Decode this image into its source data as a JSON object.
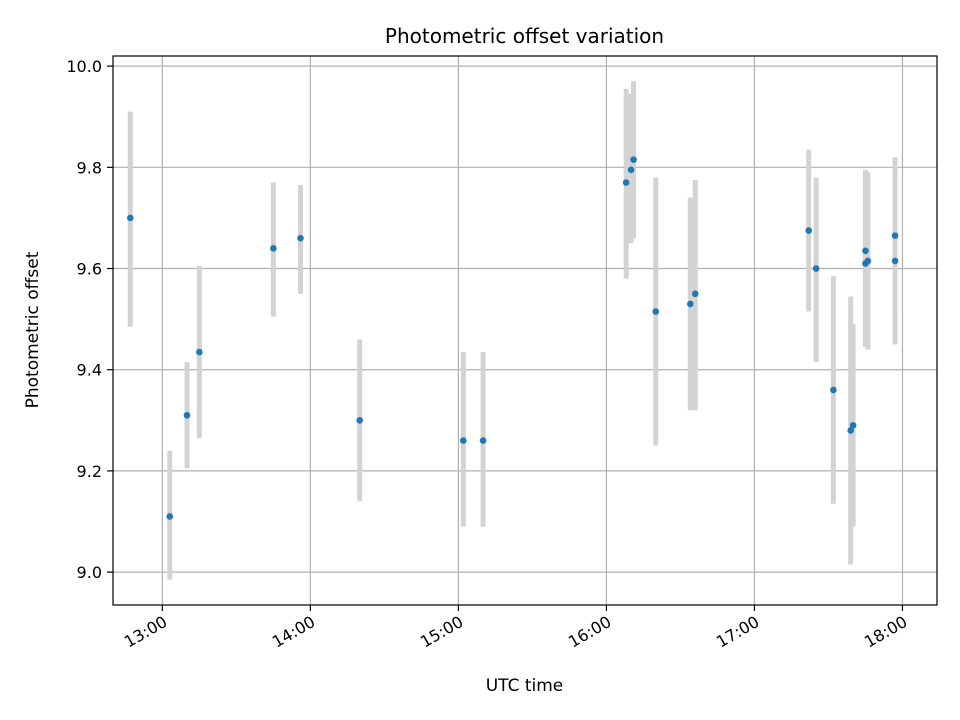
{
  "chart_data": {
    "type": "scatter",
    "title": "Photometric offset variation",
    "xlabel": "UTC time",
    "ylabel": "Photometric offset",
    "x_unit": "UTC time (HH:MM)",
    "xlim": [
      "12:40",
      "18:14"
    ],
    "ylim": [
      8.935,
      10.02
    ],
    "x_ticks": [
      "13:00",
      "14:00",
      "15:00",
      "16:00",
      "17:00",
      "18:00"
    ],
    "y_ticks": [
      9.0,
      9.2,
      9.4,
      9.6,
      9.8,
      10.0
    ],
    "y_tick_labels": [
      "9.0",
      "9.2",
      "9.4",
      "9.6",
      "9.8",
      "10.0"
    ],
    "grid": true,
    "colors": {
      "point": "#1f77b4",
      "errorbar": "#d3d3d3",
      "grid": "#b0b0b0"
    },
    "points": [
      {
        "t": "12:47",
        "y": 9.7,
        "lo": 9.485,
        "hi": 9.91
      },
      {
        "t": "13:03",
        "y": 9.11,
        "lo": 8.985,
        "hi": 9.24
      },
      {
        "t": "13:10",
        "y": 9.31,
        "lo": 9.205,
        "hi": 9.415
      },
      {
        "t": "13:15",
        "y": 9.435,
        "lo": 9.265,
        "hi": 9.605
      },
      {
        "t": "13:45",
        "y": 9.64,
        "lo": 9.505,
        "hi": 9.77
      },
      {
        "t": "13:56",
        "y": 9.66,
        "lo": 9.55,
        "hi": 9.765
      },
      {
        "t": "14:20",
        "y": 9.3,
        "lo": 9.14,
        "hi": 9.46
      },
      {
        "t": "15:02",
        "y": 9.26,
        "lo": 9.09,
        "hi": 9.435
      },
      {
        "t": "15:10",
        "y": 9.26,
        "lo": 9.09,
        "hi": 9.435
      },
      {
        "t": "16:08",
        "y": 9.77,
        "lo": 9.58,
        "hi": 9.955
      },
      {
        "t": "16:10",
        "y": 9.795,
        "lo": 9.65,
        "hi": 9.945
      },
      {
        "t": "16:11",
        "y": 9.815,
        "lo": 9.66,
        "hi": 9.97
      },
      {
        "t": "16:20",
        "y": 9.515,
        "lo": 9.25,
        "hi": 9.78
      },
      {
        "t": "16:34",
        "y": 9.53,
        "lo": 9.32,
        "hi": 9.74
      },
      {
        "t": "16:36",
        "y": 9.55,
        "lo": 9.32,
        "hi": 9.775
      },
      {
        "t": "17:22",
        "y": 9.675,
        "lo": 9.515,
        "hi": 9.835
      },
      {
        "t": "17:25",
        "y": 9.6,
        "lo": 9.415,
        "hi": 9.78
      },
      {
        "t": "17:32",
        "y": 9.36,
        "lo": 9.135,
        "hi": 9.585
      },
      {
        "t": "17:39",
        "y": 9.28,
        "lo": 9.015,
        "hi": 9.545
      },
      {
        "t": "17:40",
        "y": 9.29,
        "lo": 9.09,
        "hi": 9.49
      },
      {
        "t": "17:45",
        "y": 9.61,
        "lo": 9.445,
        "hi": 9.775
      },
      {
        "t": "17:45",
        "y": 9.635,
        "lo": 9.47,
        "hi": 9.795
      },
      {
        "t": "17:46",
        "y": 9.615,
        "lo": 9.44,
        "hi": 9.79
      },
      {
        "t": "17:57",
        "y": 9.665,
        "lo": 9.505,
        "hi": 9.82
      },
      {
        "t": "17:57",
        "y": 9.615,
        "lo": 9.45,
        "hi": 9.785
      }
    ]
  }
}
